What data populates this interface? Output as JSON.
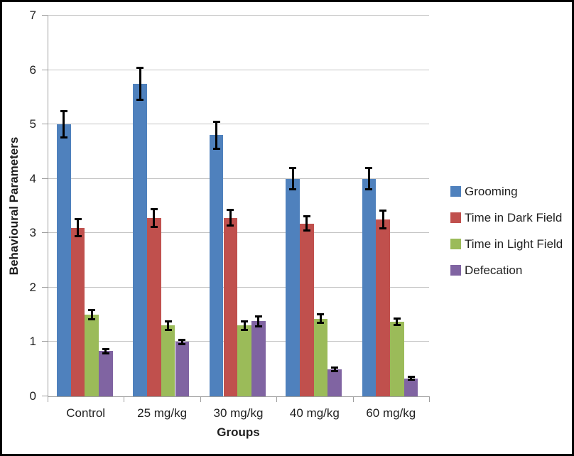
{
  "chart_data": {
    "type": "bar",
    "title": "",
    "xlabel": "Groups",
    "ylabel": "Behavioural Parameters",
    "ylim": [
      0,
      7
    ],
    "yticks": [
      "0",
      "1",
      "2",
      "3",
      "4",
      "5",
      "6",
      "7"
    ],
    "grid": true,
    "error_bars": true,
    "legend_position": "right",
    "categories": [
      "Control",
      "25 mg/kg",
      "30 mg/kg",
      "40 mg/kg",
      "60 mg/kg"
    ],
    "series": [
      {
        "name": "Grooming",
        "color": "#4F81BD",
        "values": [
          5.0,
          5.75,
          4.8,
          4.0,
          4.0
        ],
        "errors": [
          0.25,
          0.3,
          0.25,
          0.2,
          0.2
        ]
      },
      {
        "name": "Time in Dark Field",
        "color": "#C0504D",
        "values": [
          3.1,
          3.28,
          3.28,
          3.18,
          3.25
        ],
        "errors": [
          0.16,
          0.17,
          0.15,
          0.14,
          0.17
        ]
      },
      {
        "name": "Time in Light Field",
        "color": "#9BBB59",
        "values": [
          1.5,
          1.3,
          1.3,
          1.43,
          1.37
        ],
        "errors": [
          0.09,
          0.08,
          0.08,
          0.08,
          0.07
        ]
      },
      {
        "name": "Defecation",
        "color": "#8064A2",
        "values": [
          0.83,
          1.0,
          1.38,
          0.5,
          0.33
        ],
        "errors": [
          0.05,
          0.05,
          0.1,
          0.04,
          0.03
        ]
      }
    ]
  },
  "colors": {
    "background": "#ffffff",
    "border": "#000000",
    "gridline": "#c3c3c3",
    "axis": "#9e9e9e",
    "text": "#1f1f1f",
    "error_bar": "#000000"
  }
}
